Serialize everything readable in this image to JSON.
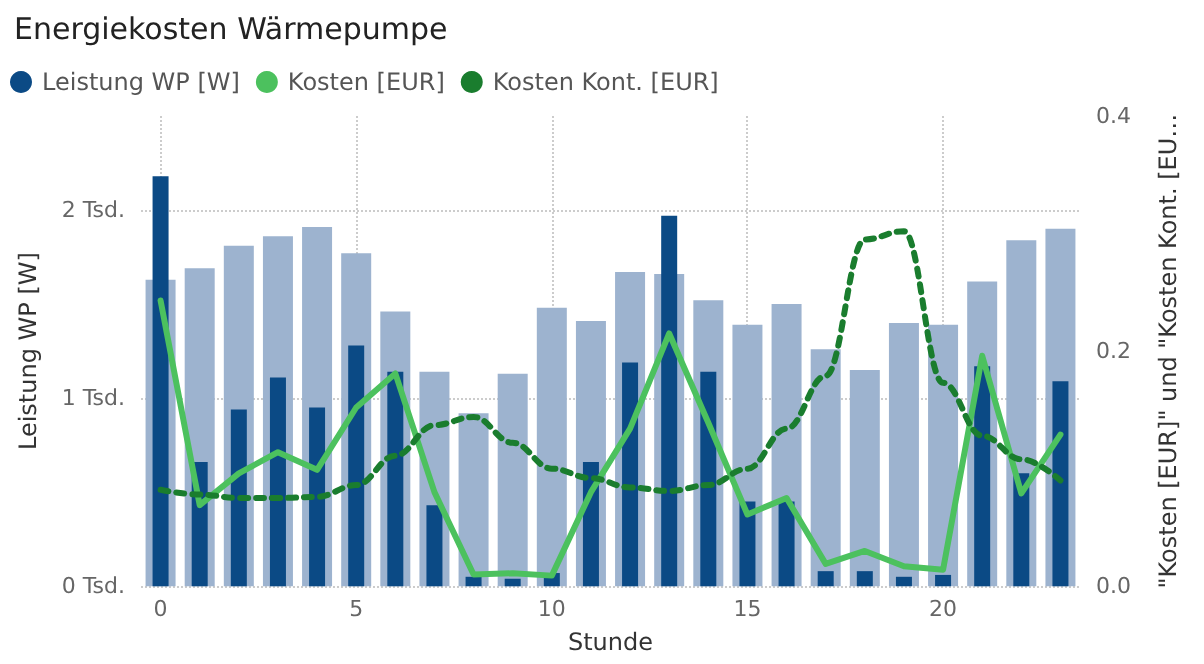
{
  "chart_data": {
    "type": "bar",
    "title": "Energiekosten Wärmepumpe",
    "xlabel": "Stunde",
    "ylabel": "Leistung WP [W]",
    "y2label": "\"Kosten [EUR]\" und \"Kosten Kont. [EU…",
    "x": [
      0,
      1,
      2,
      3,
      4,
      5,
      6,
      7,
      8,
      9,
      10,
      11,
      12,
      13,
      14,
      15,
      16,
      17,
      18,
      19,
      20,
      21,
      22,
      23
    ],
    "xlim": [
      -0.5,
      23.5
    ],
    "xticks": [
      0,
      5,
      10,
      15,
      20
    ],
    "ylim": [
      0,
      2.5
    ],
    "yticks": [
      {
        "value": 0,
        "label": "0 Tsd."
      },
      {
        "value": 1,
        "label": "1 Tsd."
      },
      {
        "value": 2,
        "label": "2 Tsd."
      }
    ],
    "y2lim": [
      0,
      0.4
    ],
    "y2ticks": [
      {
        "value": 0,
        "label": "0.0"
      },
      {
        "value": 0.2,
        "label": "0.2"
      },
      {
        "value": 0.4,
        "label": "0.4"
      }
    ],
    "grid": true,
    "legend": "top left",
    "series": [
      {
        "color": "#9db3cf",
        "values": [
          1.63,
          1.69,
          1.81,
          1.86,
          1.91,
          1.77,
          1.46,
          1.14,
          0.92,
          1.13,
          1.48,
          1.41,
          1.67,
          1.66,
          1.52,
          1.39,
          1.5,
          1.26,
          1.15,
          1.4,
          1.39,
          1.62,
          1.84,
          1.9
        ]
      },
      {
        "name": "Leistung WP [W]",
        "color": "#0b4a85",
        "values": [
          2.18,
          0.66,
          0.94,
          1.11,
          0.95,
          1.28,
          1.14,
          0.43,
          0.05,
          0.04,
          0.07,
          0.66,
          1.19,
          1.97,
          1.14,
          0.45,
          0.45,
          0.08,
          0.08,
          0.05,
          0.06,
          1.17,
          0.6,
          1.09
        ]
      },
      {
        "type": "line",
        "name": "Kosten [EUR]",
        "color": "#4cc15e",
        "axis": "y2",
        "line_style": "solid",
        "values": [
          0.243,
          0.069,
          0.096,
          0.114,
          0.099,
          0.152,
          0.181,
          0.08,
          0.01,
          0.011,
          0.009,
          0.08,
          0.134,
          0.215,
          0.139,
          0.061,
          0.075,
          0.019,
          0.03,
          0.017,
          0.014,
          0.196,
          0.079,
          0.129
        ]
      },
      {
        "type": "line",
        "name": "Kosten Kont. [EUR]",
        "color": "#1a7d2e",
        "axis": "y2",
        "line_style": "dashed",
        "values": [
          0.082,
          0.078,
          0.075,
          0.075,
          0.076,
          0.086,
          0.111,
          0.137,
          0.144,
          0.122,
          0.1,
          0.092,
          0.084,
          0.081,
          0.086,
          0.1,
          0.134,
          0.179,
          0.295,
          0.302,
          0.173,
          0.128,
          0.108,
          0.09
        ]
      }
    ]
  }
}
